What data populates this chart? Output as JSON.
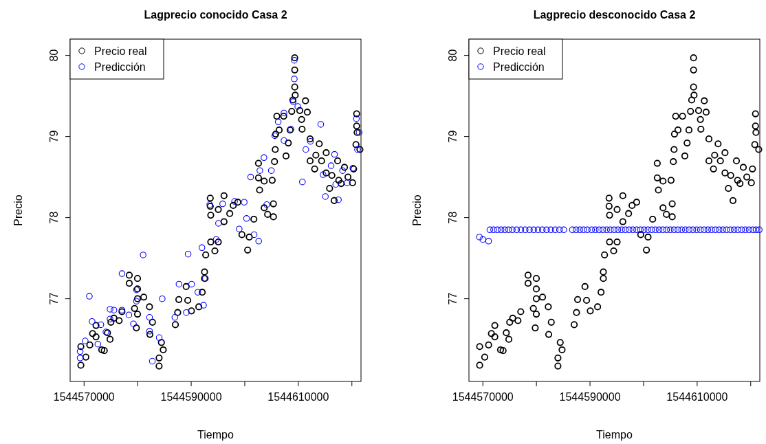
{
  "chart_data": [
    {
      "type": "scatter",
      "title": "Lagprecio conocido Casa 2",
      "xlabel": "Tiempo",
      "ylabel": "Precio",
      "xlim": [
        1544567400,
        1544621700
      ],
      "ylim": [
        75.98,
        80.2
      ],
      "xticks": [
        1544570000,
        {
          "value": 1544580000,
          "label": null
        },
        1544590000,
        {
          "value": 1544600000,
          "label": null
        },
        1544610000,
        {
          "value": 1544620000,
          "label": null
        }
      ],
      "yticks": [
        77,
        78,
        79,
        80
      ],
      "legend": "top left",
      "marker": "circle",
      "series": [
        {
          "name": "Precio real",
          "color": "#000000",
          "x": [
            1544569400,
            1544569400,
            1544570340,
            1544571070,
            1544571590,
            1544572230,
            1544572230,
            1544573300,
            1544573770,
            1544574370,
            1544574850,
            1544575010,
            1544575570,
            1544576550,
            1544577070,
            1544578440,
            1544578440,
            1544579420,
            1544579770,
            1544579980,
            1544579980,
            1544579980,
            1544579980,
            1544581140,
            1544582210,
            1544582290,
            1544582770,
            1544584010,
            1544584010,
            1544584440,
            1544584780,
            1544587050,
            1544587480,
            1544587690,
            1544589060,
            1544589360,
            1544590050,
            1544591420,
            1544592060,
            1544592490,
            1544592490,
            1544592710,
            1544593560,
            1544593560,
            1544593650,
            1544593650,
            1544594420,
            1544595060,
            1544595060,
            1544596130,
            1544596130,
            1544597200,
            1544597850,
            1544598700,
            1544599470,
            1544600540,
            1544600840,
            1544601700,
            1544602560,
            1544602560,
            1544602770,
            1544603630,
            1544603630,
            1544604270,
            1544605130,
            1544605350,
            1544605350,
            1544605560,
            1544605690,
            1544605770,
            1544605990,
            1544606420,
            1544607270,
            1544607700,
            1544608130,
            1544608470,
            1544608770,
            1544608980,
            1544609330,
            1544609330,
            1544609330,
            1544609420,
            1544610270,
            1544610610,
            1544610700,
            1544611340,
            1544611680,
            1544612200,
            1544612200,
            1544613050,
            1544613270,
            1544613910,
            1544614340,
            1544615200,
            1544615200,
            1544615840,
            1544616270,
            1544616690,
            1544617340,
            1544617550,
            1544618000,
            1544618620,
            1544619270,
            1544620120,
            1544620330,
            1544620890,
            1544620890,
            1544620980,
            1544620760,
            1544621500
          ],
          "values": [
            76.18,
            76.41,
            76.28,
            76.43,
            76.57,
            76.67,
            76.53,
            76.37,
            76.36,
            76.58,
            76.5,
            76.71,
            76.76,
            76.73,
            76.84,
            77.29,
            77.19,
            76.88,
            76.64,
            77.25,
            77.12,
            77.0,
            76.81,
            77.02,
            76.9,
            76.56,
            76.71,
            76.17,
            76.27,
            76.46,
            76.37,
            76.68,
            76.83,
            76.99,
            77.15,
            76.98,
            76.85,
            76.9,
            77.08,
            77.25,
            77.33,
            77.54,
            78.24,
            78.14,
            78.03,
            77.7,
            77.59,
            78.1,
            77.7,
            78.27,
            77.95,
            78.05,
            78.15,
            78.19,
            77.79,
            77.6,
            77.76,
            77.98,
            78.67,
            78.49,
            78.34,
            78.45,
            78.12,
            78.04,
            78.46,
            78.17,
            78.01,
            78.69,
            78.84,
            79.03,
            79.25,
            79.08,
            79.25,
            78.76,
            78.92,
            79.08,
            79.31,
            79.45,
            79.97,
            79.82,
            79.61,
            79.51,
            79.32,
            79.21,
            79.09,
            79.44,
            79.3,
            78.97,
            78.7,
            78.6,
            78.77,
            78.91,
            78.7,
            78.8,
            78.55,
            78.36,
            78.52,
            78.21,
            78.7,
            78.46,
            78.42,
            78.62,
            78.5,
            78.43,
            78.6,
            79.28,
            79.13,
            79.05,
            78.9,
            78.84
          ]
        },
        {
          "name": "Predicción",
          "color": "#0000ff",
          "x": [
            1544569270,
            1544569270,
            1544570210,
            1544570990,
            1544571500,
            1544572570,
            1544573130,
            1544574080,
            1544574850,
            1544574850,
            1544575580,
            1544577080,
            1544577080,
            1544578370,
            1544579220,
            1544579780,
            1544579780,
            1544581030,
            1544582230,
            1544582230,
            1544582740,
            1544584030,
            1544584590,
            1544586950,
            1544587720,
            1544589090,
            1544589430,
            1544590080,
            1544591240,
            1544592310,
            1544592650,
            1544592010,
            1544593470,
            1544594670,
            1544595100,
            1544595870,
            1544598100,
            1544598960,
            1544599900,
            1544600330,
            1544601100,
            1544601750,
            1544602600,
            1544602820,
            1544603590,
            1544604110,
            1544604960,
            1544605610,
            1544606250,
            1544607320,
            1544607320,
            1544608610,
            1544609040,
            1544609250,
            1544609250,
            1544609900,
            1544610760,
            1544611400,
            1544612260,
            1544614190,
            1544614620,
            1544615050,
            1544616120,
            1544616760,
            1544616980,
            1544617490,
            1544618260,
            1544619120,
            1544620190,
            1544620840,
            1544621350,
            1544621050
          ],
          "values": [
            76.27,
            76.35,
            76.48,
            77.03,
            76.72,
            76.44,
            76.68,
            76.59,
            76.75,
            76.87,
            76.86,
            77.31,
            76.86,
            76.8,
            76.69,
            77.11,
            76.97,
            77.54,
            76.77,
            76.6,
            76.23,
            76.52,
            77.0,
            76.77,
            77.18,
            76.83,
            77.55,
            77.18,
            77.08,
            76.92,
            77.25,
            77.63,
            78.16,
            77.73,
            77.93,
            78.17,
            78.2,
            77.86,
            78.19,
            77.99,
            78.5,
            77.79,
            77.71,
            78.58,
            78.74,
            78.16,
            78.58,
            79.01,
            79.18,
            79.29,
            78.95,
            79.09,
            79.43,
            79.94,
            79.71,
            79.37,
            78.44,
            78.84,
            78.94,
            79.15,
            78.53,
            78.26,
            78.64,
            78.78,
            78.41,
            78.22,
            78.58,
            78.43,
            78.61,
            79.22,
            79.05,
            78.84
          ]
        }
      ]
    },
    {
      "type": "scatter",
      "title": "Lagprecio desconocido Casa 2",
      "xlabel": "Tiempo",
      "ylabel": "Precio",
      "xlim": [
        1544567400,
        1544621700
      ],
      "ylim": [
        75.98,
        80.2
      ],
      "xticks": [
        1544570000,
        {
          "value": 1544580000,
          "label": null
        },
        1544590000,
        {
          "value": 1544600000,
          "label": null
        },
        1544610000,
        {
          "value": 1544620000,
          "label": null
        }
      ],
      "yticks": [
        77,
        78,
        79,
        80
      ],
      "legend": "top left",
      "marker": "circle",
      "series": [
        {
          "name": "Precio real",
          "color": "#000000",
          "x": [
            1544569400,
            1544569400,
            1544570340,
            1544571070,
            1544571590,
            1544572230,
            1544572230,
            1544573300,
            1544573770,
            1544574370,
            1544574850,
            1544575010,
            1544575570,
            1544576550,
            1544577070,
            1544578440,
            1544578440,
            1544579420,
            1544579770,
            1544579980,
            1544579980,
            1544579980,
            1544579980,
            1544581140,
            1544582210,
            1544582290,
            1544582770,
            1544584010,
            1544584010,
            1544584440,
            1544584780,
            1544587050,
            1544587480,
            1544587690,
            1544589060,
            1544589360,
            1544590050,
            1544591420,
            1544592060,
            1544592490,
            1544592490,
            1544592710,
            1544593560,
            1544593560,
            1544593650,
            1544593650,
            1544594420,
            1544595060,
            1544595060,
            1544596130,
            1544596130,
            1544597200,
            1544597850,
            1544598700,
            1544599470,
            1544600540,
            1544600840,
            1544601700,
            1544602560,
            1544602560,
            1544602770,
            1544603630,
            1544603630,
            1544604270,
            1544605130,
            1544605350,
            1544605350,
            1544605560,
            1544605690,
            1544605770,
            1544605990,
            1544606420,
            1544607270,
            1544607700,
            1544608130,
            1544608470,
            1544608770,
            1544608980,
            1544609330,
            1544609330,
            1544609330,
            1544609420,
            1544610270,
            1544610610,
            1544610700,
            1544611340,
            1544611680,
            1544612200,
            1544612200,
            1544613050,
            1544613270,
            1544613910,
            1544614340,
            1544615200,
            1544615200,
            1544615840,
            1544616270,
            1544616690,
            1544617340,
            1544617550,
            1544618000,
            1544618620,
            1544619270,
            1544620120,
            1544620330,
            1544620890,
            1544620890,
            1544620980,
            1544620760,
            1544621500
          ],
          "values": [
            76.18,
            76.41,
            76.28,
            76.43,
            76.57,
            76.67,
            76.53,
            76.37,
            76.36,
            76.58,
            76.5,
            76.71,
            76.76,
            76.73,
            76.84,
            77.29,
            77.19,
            76.88,
            76.64,
            77.25,
            77.12,
            77.0,
            76.81,
            77.02,
            76.9,
            76.56,
            76.71,
            76.17,
            76.27,
            76.46,
            76.37,
            76.68,
            76.83,
            76.99,
            77.15,
            76.98,
            76.85,
            76.9,
            77.08,
            77.25,
            77.33,
            77.54,
            78.24,
            78.14,
            78.03,
            77.7,
            77.59,
            78.1,
            77.7,
            78.27,
            77.95,
            78.05,
            78.15,
            78.19,
            77.79,
            77.6,
            77.76,
            77.98,
            78.67,
            78.49,
            78.34,
            78.45,
            78.12,
            78.04,
            78.46,
            78.17,
            78.01,
            78.69,
            78.84,
            79.03,
            79.25,
            79.08,
            79.25,
            78.76,
            78.92,
            79.08,
            79.31,
            79.45,
            79.97,
            79.82,
            79.61,
            79.51,
            79.32,
            79.21,
            79.09,
            79.44,
            79.3,
            78.97,
            78.7,
            78.6,
            78.77,
            78.91,
            78.7,
            78.8,
            78.55,
            78.36,
            78.52,
            78.21,
            78.7,
            78.46,
            78.42,
            78.62,
            78.5,
            78.43,
            78.6,
            79.28,
            79.13,
            79.05,
            78.9,
            78.84
          ]
        },
        {
          "name": "Predicción",
          "color": "#0000ff",
          "x": [
            1544569360,
            1544570000,
            1544571070,
            1544571300,
            1544572000,
            1544572700,
            1544573400,
            1544574100,
            1544574800,
            1544575500,
            1544576300,
            1544577100,
            1544577900,
            1544578700,
            1544579500,
            1544580300,
            1544581100,
            1544581900,
            1544582700,
            1544583500,
            1544584300,
            1544585100,
            1544586700,
            1544587400,
            1544588100,
            1544588800,
            1544589500,
            1544590300,
            1544591000,
            1544591700,
            1544592400,
            1544593100,
            1544593800,
            1544594500,
            1544595200,
            1544595900,
            1544596600,
            1544597300,
            1544598000,
            1544598700,
            1544599400,
            1544600100,
            1544600800,
            1544601500,
            1544602200,
            1544602900,
            1544603600,
            1544604300,
            1544605000,
            1544605700,
            1544606400,
            1544607100,
            1544607800,
            1544608500,
            1544609200,
            1544609900,
            1544610600,
            1544611300,
            1544612000,
            1544612700,
            1544613400,
            1544614100,
            1544614800,
            1544615500,
            1544616200,
            1544616900,
            1544617600,
            1544618300,
            1544619000,
            1544619700,
            1544620400,
            1544621000,
            1544621600
          ],
          "values": [
            77.76,
            77.73,
            77.71,
            77.85,
            77.85,
            77.85,
            77.85,
            77.85,
            77.85,
            77.85,
            77.85,
            77.85,
            77.85,
            77.85,
            77.85,
            77.85,
            77.85,
            77.85,
            77.85,
            77.85,
            77.85,
            77.85,
            77.85,
            77.85,
            77.85,
            77.85,
            77.85,
            77.85,
            77.85,
            77.85,
            77.85,
            77.85,
            77.85,
            77.85,
            77.85,
            77.85,
            77.85,
            77.85,
            77.85,
            77.85,
            77.85,
            77.85,
            77.85,
            77.85,
            77.85,
            77.85,
            77.85,
            77.85,
            77.85,
            77.85,
            77.85,
            77.85,
            77.85,
            77.85,
            77.85,
            77.85,
            77.85,
            77.85,
            77.85,
            77.85,
            77.85,
            77.85,
            77.85,
            77.85,
            77.85,
            77.85,
            77.85,
            77.85,
            77.85,
            77.85,
            77.85,
            77.85,
            77.85
          ]
        }
      ]
    }
  ]
}
